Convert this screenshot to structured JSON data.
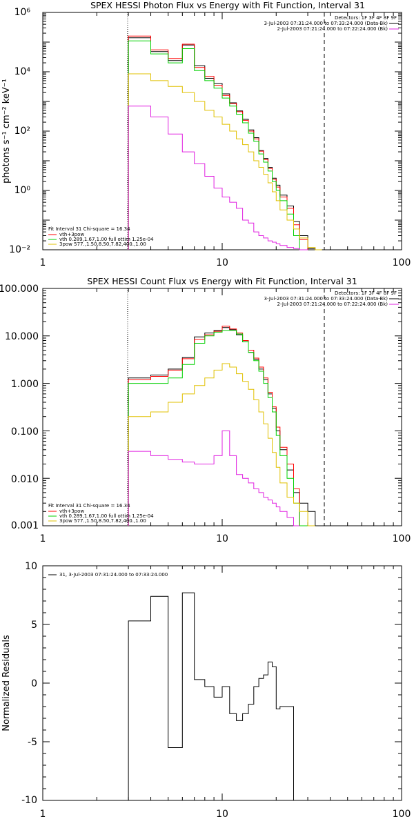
{
  "charts": [
    {
      "id": "p1",
      "title": "SPEX HESSI Photon Flux vs Energy with Fit Function, Interval 31",
      "ylabel": "photons s⁻¹ cm⁻² keV⁻¹",
      "yscale": "log",
      "ylim": [
        0.01,
        1000000
      ],
      "ytick_labels": [
        "10⁻²",
        "10⁰",
        "10²",
        "10⁴",
        "10⁶"
      ],
      "xlim": [
        1,
        100
      ],
      "xscale": "log",
      "xtick_labels": [
        "1",
        "10",
        "100"
      ],
      "detectors_text": "Detectors: 1F 3F 4F 8F 9F",
      "legend_right": [
        "3-Jul-2003 07:31:24.000 to 07:33:24.000 (Data-Bk)",
        "2-Jul-2003 07:21:24.000 to 07:22:24.000 (Bk)"
      ],
      "fit_header": "Fit Interval  31    Chi-square = 16.34",
      "fit_legend": [
        "vth+3pow",
        "vth 0.289,1.67,1.00  full ottim 1.25e-04",
        "3pow 577.,1.50,8.50,7.82,400.,1.00"
      ]
    },
    {
      "id": "p2",
      "title": "SPEX HESSI Count Flux vs Energy with Fit Function, Interval 31",
      "yscale": "log",
      "ylim": [
        0.001,
        100
      ],
      "ytick_labels": [
        "0.001",
        "0.010",
        "0.100",
        "1.000",
        "10.000",
        "100.000"
      ],
      "xlim": [
        1,
        100
      ],
      "xscale": "log",
      "xtick_labels": [
        "1",
        "10",
        "100"
      ],
      "detectors_text": "Detectors: 1F 3F 4F 8F 9F",
      "legend_right": [
        "3-Jul-2003 07:31:24.000 to 07:33:24.000 (Data-Bk)",
        "2-Jul-2003 07:21:24.000 to 07:22:24.000 (Bk)"
      ],
      "fit_header": "Fit Interval  31    Chi-square = 16.34",
      "fit_legend": [
        "vth+3pow",
        "vth 0.289,1.67,1.00  full ottim 1.25e-04",
        "3pow 577.,1.50,8.50,7.82,400.,1.00"
      ]
    },
    {
      "id": "p3",
      "title": "",
      "ylabel": "Normalized Residuals",
      "yscale": "linear",
      "ylim": [
        -10,
        10
      ],
      "ytick_labels": [
        "-10",
        "-5",
        "0",
        "5",
        "10"
      ],
      "xlim": [
        1,
        100
      ],
      "xscale": "log",
      "xtick_labels": [
        "1",
        "10",
        "100"
      ],
      "legend_text": "31,  3-Jul-2003 07:31:24.000 to 07:33:24.000"
    }
  ],
  "chart_data": [
    {
      "type": "line",
      "chart": "photon flux",
      "x_bin_edges": [
        3,
        4,
        5,
        6,
        7,
        8,
        9,
        10,
        11,
        12,
        13,
        14,
        15,
        16,
        17,
        18,
        19,
        20,
        21,
        23,
        25,
        27,
        30,
        33,
        36,
        40,
        45
      ],
      "series": [
        {
          "color": "#000000",
          "values": [
            140000,
            48000,
            24000,
            80000,
            16000,
            6000,
            4000,
            1800,
            900,
            480,
            250,
            110,
            60,
            22,
            12,
            6,
            2.6,
            1.5,
            0.7,
            0.3,
            0.09,
            0.03,
            0.011,
            0.01,
            0.01
          ]
        },
        {
          "color": "#ff0000",
          "values": [
            160000,
            55000,
            28000,
            85000,
            14000,
            7000,
            3500,
            1600,
            850,
            450,
            230,
            100,
            55,
            21,
            11,
            5.5,
            2.4,
            1.3,
            0.6,
            0.25,
            0.07,
            0.022
          ]
        },
        {
          "color": "#00d000",
          "values": [
            110000,
            40000,
            20000,
            60000,
            11000,
            5000,
            2800,
            1300,
            700,
            370,
            190,
            85,
            45,
            17,
            9,
            4.5,
            2.0,
            1.0,
            0.45,
            0.16,
            0.03,
            0.01
          ]
        },
        {
          "color": "#e0c000",
          "values": [
            8500,
            5000,
            3200,
            2000,
            1000,
            500,
            300,
            170,
            100,
            55,
            35,
            20,
            10,
            6,
            3.5,
            1.8,
            0.9,
            0.45,
            0.22,
            0.1,
            0.05,
            0.025,
            0.012,
            0.01
          ]
        },
        {
          "color": "#e020e0",
          "values": [
            700,
            300,
            80,
            20,
            8,
            3,
            1.2,
            0.6,
            0.4,
            0.25,
            0.1,
            0.08,
            0.04,
            0.03,
            0.025,
            0.02,
            0.018,
            0.016,
            0.014,
            0.012,
            0.011,
            0.01
          ]
        }
      ],
      "vertical_lines": [
        {
          "x": 3,
          "style": "dotted"
        },
        {
          "x": 37,
          "style": "dashed"
        }
      ]
    },
    {
      "type": "line",
      "chart": "count flux",
      "x_bin_edges": [
        3,
        4,
        5,
        6,
        7,
        8,
        9,
        10,
        11,
        12,
        13,
        14,
        15,
        16,
        17,
        18,
        19,
        20,
        21,
        23,
        25,
        27,
        30,
        33,
        36,
        40,
        45
      ],
      "series": [
        {
          "color": "#000000",
          "values": [
            1.3,
            1.5,
            2.0,
            3.5,
            9.5,
            11.5,
            13.0,
            15.0,
            13.5,
            10.5,
            7.5,
            4.5,
            3.2,
            2.0,
            1.2,
            0.6,
            0.3,
            0.1,
            0.04,
            0.015,
            0.005,
            0.003,
            0.002,
            0.001
          ]
        },
        {
          "color": "#ff0000",
          "values": [
            1.2,
            1.4,
            1.9,
            3.3,
            8.5,
            10.5,
            12.5,
            16.0,
            14.0,
            11.5,
            8.0,
            5.0,
            3.4,
            2.2,
            1.3,
            0.65,
            0.32,
            0.12,
            0.045,
            0.02,
            0.006
          ]
        },
        {
          "color": "#00d000",
          "values": [
            1.0,
            1.0,
            1.3,
            2.5,
            7.0,
            10.0,
            12.0,
            13.0,
            13.0,
            11.0,
            7.5,
            4.5,
            3.0,
            1.8,
            1.0,
            0.5,
            0.25,
            0.08,
            0.03,
            0.01,
            0.003,
            0.001
          ]
        },
        {
          "color": "#e0c000",
          "values": [
            0.2,
            0.25,
            0.4,
            0.6,
            0.9,
            1.3,
            1.9,
            2.6,
            2.2,
            1.6,
            1.1,
            0.75,
            0.45,
            0.25,
            0.14,
            0.07,
            0.035,
            0.017,
            0.008,
            0.004,
            0.003,
            0.002,
            0.001
          ]
        },
        {
          "color": "#e020e0",
          "values": [
            0.037,
            0.03,
            0.025,
            0.022,
            0.02,
            0.02,
            0.03,
            0.1,
            0.03,
            0.012,
            0.01,
            0.008,
            0.006,
            0.005,
            0.004,
            0.0035,
            0.003,
            0.0025,
            0.002,
            0.0015,
            0.001
          ]
        }
      ],
      "vertical_lines": [
        {
          "x": 3,
          "style": "dotted"
        },
        {
          "x": 37,
          "style": "dashed"
        }
      ]
    },
    {
      "type": "line",
      "chart": "normalized residuals",
      "x_bin_edges": [
        3,
        4,
        5,
        6,
        7,
        8,
        9,
        10,
        11,
        12,
        13,
        14,
        15,
        16,
        17,
        18,
        19,
        20,
        21,
        23,
        25,
        27,
        30,
        33,
        36
      ],
      "series": [
        {
          "color": "#000000",
          "values": [
            5.3,
            7.4,
            -5.5,
            7.7,
            0.3,
            -0.3,
            -1.2,
            -0.3,
            -2.6,
            -3.2,
            -2.6,
            -1.8,
            -0.3,
            0.4,
            0.7,
            1.8,
            1.4,
            -2.2,
            -2.0,
            -2.0
          ]
        }
      ]
    }
  ]
}
